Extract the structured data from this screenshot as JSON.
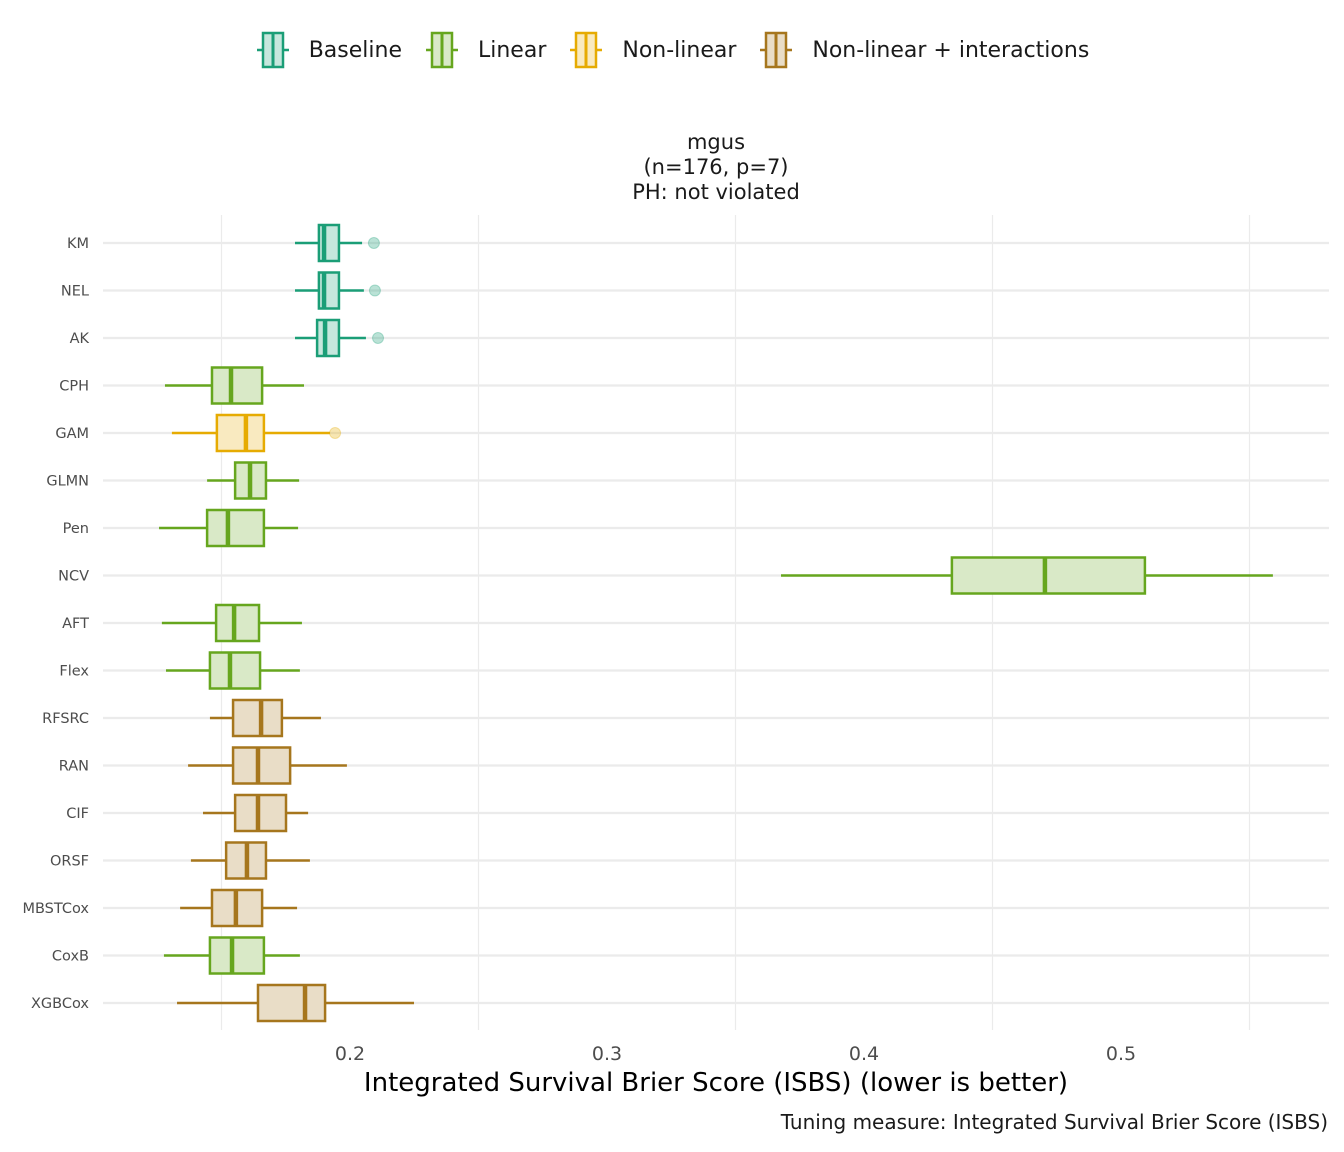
{
  "legend": {
    "items": [
      {
        "label": "Baseline",
        "color": "#1B9E77",
        "fill": "#C6E7DD"
      },
      {
        "label": "Linear",
        "color": "#66A61E",
        "fill": "#D9E9C7"
      },
      {
        "label": "Non-linear",
        "color": "#E6AB02",
        "fill": "#F9EAC0"
      },
      {
        "label": "Non-linear + interactions",
        "color": "#A6761D",
        "fill": "#E9DDC7"
      }
    ]
  },
  "facet": {
    "line1": "mgus",
    "line2": "(n=176, p=7)",
    "line3": "PH: not violated"
  },
  "caption": "Tuning measure: Integrated Survival Brier Score (ISBS)",
  "chart_data": {
    "type": "boxplot",
    "orientation": "horizontal",
    "title": "mgus (n=176, p=7) PH: not violated",
    "xlabel": "Integrated Survival Brier Score (ISBS) (lower is better)",
    "ylabel": "",
    "xlim": [
      0.104,
      0.581
    ],
    "x_ticks": [
      0.2,
      0.3,
      0.4,
      0.5
    ],
    "x_tick_labels": [
      "0.2",
      "0.3",
      "0.4",
      "0.5"
    ],
    "x_minor_gridlines": [
      0.15,
      0.25,
      0.35,
      0.45,
      0.55
    ],
    "grid": true,
    "legend_position": "top",
    "categories": [
      "KM",
      "NEL",
      "AK",
      "CPH",
      "GAM",
      "GLMN",
      "Pen",
      "NCV",
      "AFT",
      "Flex",
      "RFSRC",
      "RAN",
      "CIF",
      "ORSF",
      "MBSTCox",
      "CoxB",
      "XGBCox"
    ],
    "series": [
      {
        "category": "KM",
        "group": "Baseline",
        "whisker_low": 0.1786,
        "q1": 0.1879,
        "median": 0.1899,
        "q3": 0.1957,
        "whisker_high": 0.2047,
        "outliers": [
          0.2093
        ]
      },
      {
        "category": "NEL",
        "group": "Baseline",
        "whisker_low": 0.1786,
        "q1": 0.1879,
        "median": 0.1899,
        "q3": 0.1957,
        "whisker_high": 0.2054,
        "outliers": [
          0.2097
        ]
      },
      {
        "category": "AK",
        "group": "Baseline",
        "whisker_low": 0.1786,
        "q1": 0.1872,
        "median": 0.1903,
        "q3": 0.1957,
        "whisker_high": 0.2062,
        "outliers": [
          0.2109
        ]
      },
      {
        "category": "CPH",
        "group": "Linear",
        "whisker_low": 0.128,
        "q1": 0.1463,
        "median": 0.1537,
        "q3": 0.1658,
        "whisker_high": 0.1821,
        "outliers": []
      },
      {
        "category": "GAM",
        "group": "Non-linear",
        "whisker_low": 0.1307,
        "q1": 0.1482,
        "median": 0.1595,
        "q3": 0.1665,
        "whisker_high": 0.1922,
        "outliers": [
          0.1942
        ]
      },
      {
        "category": "GLMN",
        "group": "Linear",
        "whisker_low": 0.1444,
        "q1": 0.1553,
        "median": 0.1611,
        "q3": 0.1673,
        "whisker_high": 0.1802,
        "outliers": []
      },
      {
        "category": "Pen",
        "group": "Linear",
        "whisker_low": 0.1257,
        "q1": 0.1444,
        "median": 0.1525,
        "q3": 0.1665,
        "whisker_high": 0.1798,
        "outliers": []
      },
      {
        "category": "NCV",
        "group": "Linear",
        "whisker_low": 0.3677,
        "q1": 0.4342,
        "median": 0.4704,
        "q3": 0.5093,
        "whisker_high": 0.5591,
        "outliers": []
      },
      {
        "category": "AFT",
        "group": "Linear",
        "whisker_low": 0.1268,
        "q1": 0.1479,
        "median": 0.1549,
        "q3": 0.1646,
        "whisker_high": 0.1813,
        "outliers": []
      },
      {
        "category": "Flex",
        "group": "Linear",
        "whisker_low": 0.1284,
        "q1": 0.1455,
        "median": 0.1533,
        "q3": 0.165,
        "whisker_high": 0.1805,
        "outliers": []
      },
      {
        "category": "RFSRC",
        "group": "Non-linear + interactions",
        "whisker_low": 0.1455,
        "q1": 0.1545,
        "median": 0.1654,
        "q3": 0.1735,
        "whisker_high": 0.1887,
        "outliers": []
      },
      {
        "category": "RAN",
        "group": "Non-linear + interactions",
        "whisker_low": 0.137,
        "q1": 0.1545,
        "median": 0.1642,
        "q3": 0.1767,
        "whisker_high": 0.1988,
        "outliers": []
      },
      {
        "category": "CIF",
        "group": "Non-linear + interactions",
        "whisker_low": 0.1428,
        "q1": 0.1553,
        "median": 0.1642,
        "q3": 0.1751,
        "whisker_high": 0.1837,
        "outliers": []
      },
      {
        "category": "ORSF",
        "group": "Non-linear + interactions",
        "whisker_low": 0.1381,
        "q1": 0.1518,
        "median": 0.1599,
        "q3": 0.1673,
        "whisker_high": 0.1844,
        "outliers": []
      },
      {
        "category": "MBSTCox",
        "group": "Non-linear + interactions",
        "whisker_low": 0.1339,
        "q1": 0.1463,
        "median": 0.1556,
        "q3": 0.1658,
        "whisker_high": 0.1794,
        "outliers": []
      },
      {
        "category": "CoxB",
        "group": "Linear",
        "whisker_low": 0.1276,
        "q1": 0.1455,
        "median": 0.1541,
        "q3": 0.1665,
        "whisker_high": 0.1805,
        "outliers": []
      },
      {
        "category": "XGBCox",
        "group": "Non-linear + interactions",
        "whisker_low": 0.1327,
        "q1": 0.1642,
        "median": 0.1825,
        "q3": 0.1903,
        "whisker_high": 0.2249,
        "outliers": []
      }
    ]
  }
}
